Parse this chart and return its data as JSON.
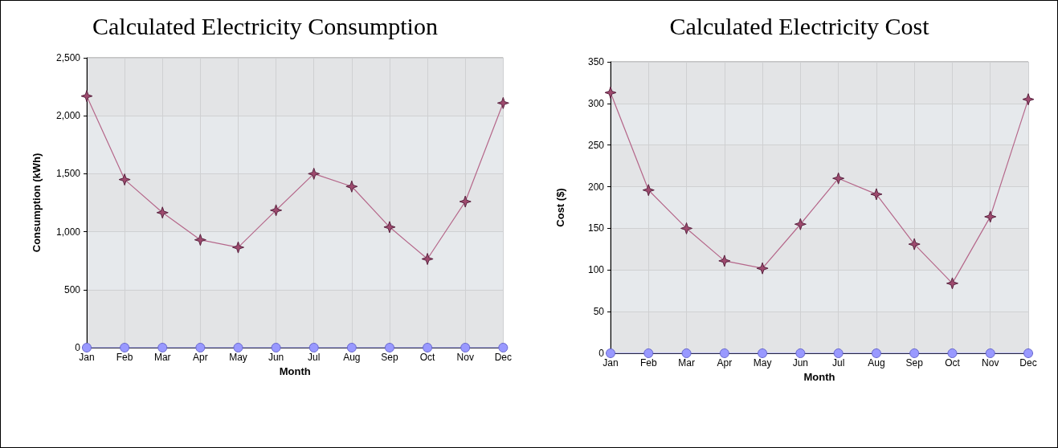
{
  "chart_data": [
    {
      "type": "line",
      "title": "Calculated Electricity Consumption",
      "xlabel": "Month",
      "ylabel": "Consumption (kWh)",
      "categories": [
        "Jan",
        "Feb",
        "Mar",
        "Apr",
        "May",
        "Jun",
        "Jul",
        "Aug",
        "Sep",
        "Oct",
        "Nov",
        "Dec"
      ],
      "series": [
        {
          "color": "#9e4a6e",
          "marker": "star",
          "values": [
            2170,
            1450,
            1165,
            930,
            865,
            1185,
            1500,
            1390,
            1040,
            765,
            1260,
            2110
          ]
        },
        {
          "color": "#9999ff",
          "marker": "circle",
          "values": [
            0,
            0,
            0,
            0,
            0,
            0,
            0,
            0,
            0,
            0,
            0,
            0
          ]
        }
      ],
      "ylim": [
        0,
        2500
      ],
      "yticks": [
        {
          "value": 0,
          "label": "0"
        },
        {
          "value": 500,
          "label": "500"
        },
        {
          "value": 1000,
          "label": "1,000"
        },
        {
          "value": 1500,
          "label": "1,500"
        },
        {
          "value": 2000,
          "label": "2,000"
        },
        {
          "value": 2500,
          "label": "2,500"
        }
      ],
      "grid": true
    },
    {
      "type": "line",
      "title": "Calculated Electricity Cost",
      "xlabel": "Month",
      "ylabel": "Cost ($)",
      "categories": [
        "Jan",
        "Feb",
        "Mar",
        "Apr",
        "May",
        "Jun",
        "Jul",
        "Aug",
        "Sep",
        "Oct",
        "Nov",
        "Dec"
      ],
      "series": [
        {
          "color": "#9e4a6e",
          "marker": "star",
          "values": [
            313,
            196,
            150,
            111,
            102,
            155,
            210,
            191,
            131,
            84,
            164,
            305
          ]
        },
        {
          "color": "#9999ff",
          "marker": "circle",
          "values": [
            0,
            0,
            0,
            0,
            0,
            0,
            0,
            0,
            0,
            0,
            0,
            0
          ]
        }
      ],
      "ylim": [
        0,
        350
      ],
      "yticks": [
        0,
        50,
        100,
        150,
        200,
        250,
        300,
        350
      ],
      "grid": true
    }
  ]
}
